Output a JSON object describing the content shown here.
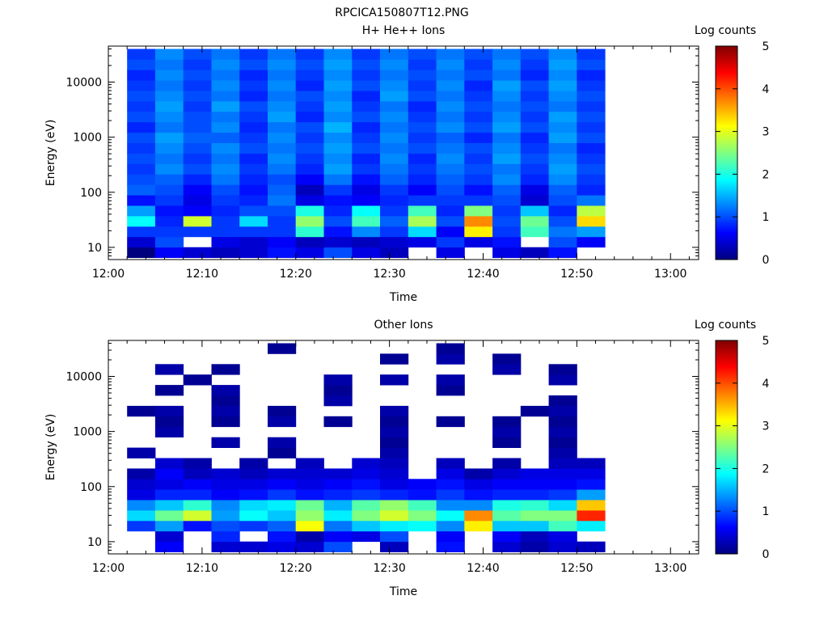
{
  "figure": {
    "title": "RPCICA150807T12.PNG"
  },
  "colors": {
    "colormap": [
      "#00007f",
      "#0000ff",
      "#0080ff",
      "#00ffff",
      "#80ff80",
      "#ffff00",
      "#ff8000",
      "#ff0000",
      "#7f0000"
    ],
    "empty": "#ffffff"
  },
  "chart_data": [
    {
      "type": "heatmap",
      "title": "H+ He++ Ions",
      "xlabel": "Time",
      "ylabel": "Energy (eV)",
      "x_ticks": [
        "12:00",
        "12:10",
        "12:20",
        "12:30",
        "12:40",
        "12:50",
        "13:00"
      ],
      "x_range": [
        "12:00",
        "13:03"
      ],
      "y_scale": "log",
      "y_ticks": [
        "10",
        "100",
        "1000",
        "10000"
      ],
      "y_range": [
        6,
        45000
      ],
      "colorbar": {
        "label": "Log counts",
        "range": [
          0,
          5
        ],
        "ticks": [
          "0",
          "1",
          "2",
          "3",
          "4",
          "5"
        ]
      },
      "time_bins": [
        {
          "start": "12:02",
          "end": "12:05",
          "levels": [
            0.0,
            0.4,
            0.9,
            1.9,
            1.4,
            0.7,
            1.1,
            1.0,
            0.9,
            1.0,
            0.9,
            1.0,
            0.8,
            1.0,
            0.9,
            1.0,
            0.9,
            0.8,
            1.0,
            0.9
          ]
        },
        {
          "start": "12:05",
          "end": "12:08",
          "levels": [
            0.6,
            1.0,
            0.9,
            0.8,
            0.7,
            0.9,
            1.0,
            1.1,
            1.3,
            1.2,
            1.3,
            1.4,
            1.2,
            1.3,
            1.4,
            1.3,
            1.2,
            1.3,
            1.2,
            1.3
          ]
        },
        {
          "start": "12:08",
          "end": "12:11",
          "levels": [
            0.4,
            -1,
            0.9,
            2.9,
            0.6,
            0.5,
            0.6,
            0.8,
            1.0,
            0.9,
            1.0,
            1.1,
            1.0,
            1.0,
            0.9,
            1.0,
            0.9,
            1.0,
            0.9,
            1.0
          ]
        },
        {
          "start": "12:11",
          "end": "12:14",
          "levels": [
            0.3,
            0.5,
            0.9,
            0.9,
            0.8,
            0.9,
            1.0,
            1.2,
            1.3,
            1.2,
            1.3,
            1.1,
            1.3,
            1.2,
            1.4,
            1.2,
            1.3,
            1.2,
            1.3,
            1.2
          ]
        },
        {
          "start": "12:14",
          "end": "12:17",
          "levels": [
            0.4,
            0.4,
            0.9,
            1.7,
            1.0,
            0.8,
            0.7,
            0.8,
            0.9,
            0.8,
            1.0,
            0.9,
            0.8,
            0.9,
            1.0,
            0.8,
            0.9,
            0.8,
            1.0,
            0.9
          ]
        },
        {
          "start": "12:17",
          "end": "12:20",
          "levels": [
            0.7,
            0.6,
            0.9,
            0.9,
            1.0,
            1.2,
            1.1,
            1.0,
            1.2,
            1.3,
            1.2,
            1.3,
            1.2,
            1.4,
            1.3,
            1.2,
            1.3,
            1.2,
            1.3,
            1.2
          ]
        },
        {
          "start": "12:20",
          "end": "12:23",
          "levels": [
            0.5,
            0.3,
            2.1,
            2.6,
            2.0,
            0.5,
            0.3,
            0.6,
            0.8,
            0.9,
            1.0,
            0.9,
            1.0,
            0.8,
            0.9,
            1.0,
            0.8,
            0.9,
            1.0,
            0.9
          ]
        },
        {
          "start": "12:23",
          "end": "12:26",
          "levels": [
            1.0,
            0.4,
            0.7,
            1.0,
            0.8,
            0.7,
            0.9,
            1.2,
            1.4,
            1.3,
            1.4,
            1.3,
            1.5,
            1.3,
            1.4,
            1.3,
            1.4,
            1.3,
            1.4,
            1.3
          ]
        },
        {
          "start": "12:26",
          "end": "12:29",
          "levels": [
            0.5,
            0.3,
            1.3,
            2.2,
            1.9,
            0.6,
            0.5,
            0.7,
            0.9,
            0.8,
            1.0,
            0.9,
            0.8,
            1.0,
            0.9,
            0.8,
            1.0,
            0.9,
            1.0,
            0.9
          ]
        },
        {
          "start": "12:29",
          "end": "12:32",
          "levels": [
            0.3,
            0.4,
            0.9,
            1.1,
            0.9,
            0.8,
            0.9,
            1.1,
            1.2,
            1.3,
            1.2,
            1.3,
            1.2,
            1.3,
            1.2,
            1.4,
            1.3,
            1.2,
            1.3,
            1.2
          ]
        },
        {
          "start": "12:32",
          "end": "12:35",
          "levels": [
            -1,
            0.5,
            1.7,
            2.7,
            2.2,
            0.9,
            0.6,
            0.8,
            0.9,
            0.8,
            1.0,
            0.9,
            1.0,
            0.9,
            0.8,
            1.0,
            0.9,
            1.0,
            0.9,
            1.0
          ]
        },
        {
          "start": "12:35",
          "end": "12:38",
          "levels": [
            0.5,
            0.9,
            0.6,
            1.0,
            0.8,
            0.9,
            1.0,
            1.1,
            1.2,
            1.3,
            1.2,
            1.1,
            1.3,
            1.2,
            1.3,
            1.2,
            1.3,
            1.2,
            1.3,
            1.2
          ]
        },
        {
          "start": "12:38",
          "end": "12:41",
          "levels": [
            -1,
            0.5,
            3.2,
            3.7,
            2.5,
            0.9,
            0.7,
            0.9,
            1.0,
            0.9,
            1.0,
            0.8,
            1.0,
            0.9,
            1.0,
            0.9,
            0.8,
            1.0,
            0.9,
            1.0
          ]
        },
        {
          "start": "12:41",
          "end": "12:44",
          "levels": [
            0.5,
            0.7,
            0.9,
            1.0,
            0.9,
            1.0,
            1.1,
            1.3,
            1.2,
            1.4,
            1.3,
            1.2,
            1.4,
            1.3,
            1.2,
            1.3,
            1.4,
            1.2,
            1.3,
            1.2
          ]
        },
        {
          "start": "12:44",
          "end": "12:47",
          "levels": [
            0.3,
            -1,
            2.2,
            2.4,
            1.6,
            0.4,
            0.5,
            0.8,
            0.9,
            1.0,
            0.9,
            0.8,
            1.0,
            0.9,
            1.0,
            0.9,
            1.0,
            0.8,
            0.9,
            1.0
          ]
        },
        {
          "start": "12:47",
          "end": "12:50",
          "levels": [
            0.7,
            1.0,
            1.2,
            1.0,
            0.8,
            1.0,
            1.1,
            1.3,
            1.4,
            1.3,
            1.2,
            1.4,
            1.3,
            1.4,
            1.2,
            1.3,
            1.4,
            1.3,
            1.4,
            1.3
          ]
        },
        {
          "start": "12:50",
          "end": "12:53",
          "levels": [
            -1,
            0.6,
            1.4,
            3.3,
            2.8,
            1.2,
            0.8,
            0.9,
            1.0,
            0.9,
            0.8,
            1.0,
            0.9,
            1.0,
            0.9,
            1.0,
            0.9,
            0.8,
            1.0,
            0.9
          ]
        }
      ]
    },
    {
      "type": "heatmap",
      "title": "Other Ions",
      "xlabel": "Time",
      "ylabel": "Energy (eV)",
      "x_ticks": [
        "12:00",
        "12:10",
        "12:20",
        "12:30",
        "12:40",
        "12:50",
        "13:00"
      ],
      "x_range": [
        "12:00",
        "13:03"
      ],
      "y_scale": "log",
      "y_ticks": [
        "10",
        "100",
        "1000",
        "10000"
      ],
      "y_range": [
        6,
        45000
      ],
      "colorbar": {
        "label": "Log counts",
        "range": [
          0,
          5
        ],
        "ticks": [
          "0",
          "1",
          "2",
          "3",
          "4",
          "5"
        ]
      },
      "time_bins": [
        {
          "start": "12:02",
          "end": "12:05",
          "levels": [
            -1,
            -1,
            0.9,
            1.7,
            1.3,
            0.5,
            0.4,
            0.2,
            -1,
            0.2,
            -1,
            -1,
            -1,
            0.1,
            -1,
            -1,
            -1,
            -1,
            -1,
            -1
          ]
        },
        {
          "start": "12:05",
          "end": "12:08",
          "levels": [
            0.6,
            0.4,
            1.4,
            2.4,
            1.6,
            0.8,
            0.5,
            0.6,
            0.4,
            -1,
            -1,
            0.2,
            0.1,
            0.2,
            -1,
            0.1,
            -1,
            0.2,
            -1,
            -1
          ]
        },
        {
          "start": "12:08",
          "end": "12:11",
          "levels": [
            -1,
            -1,
            0.7,
            2.9,
            2.1,
            0.8,
            0.6,
            0.3,
            0.2,
            -1,
            -1,
            -1,
            -1,
            -1,
            -1,
            -1,
            0.1,
            -1,
            -1,
            -1
          ]
        },
        {
          "start": "12:11",
          "end": "12:14",
          "levels": [
            0.4,
            0.8,
            1.0,
            1.4,
            1.3,
            0.6,
            0.5,
            0.4,
            -1,
            -1,
            0.2,
            -1,
            0.1,
            0.2,
            0.1,
            0.2,
            -1,
            0.1,
            -1,
            -1
          ]
        },
        {
          "start": "12:14",
          "end": "12:17",
          "levels": [
            0.4,
            -1,
            0.9,
            1.9,
            1.7,
            0.7,
            0.5,
            0.3,
            0.2,
            -1,
            -1,
            -1,
            -1,
            -1,
            -1,
            -1,
            -1,
            -1,
            -1,
            -1
          ]
        },
        {
          "start": "12:17",
          "end": "12:20",
          "levels": [
            0.5,
            0.7,
            1.1,
            1.6,
            1.8,
            0.9,
            0.6,
            0.4,
            -1,
            0.1,
            0.2,
            -1,
            0.2,
            0.1,
            -1,
            -1,
            -1,
            -1,
            -1,
            0.1
          ]
        },
        {
          "start": "12:20",
          "end": "12:23",
          "levels": [
            0.4,
            0.2,
            3.1,
            2.6,
            2.4,
            0.7,
            0.5,
            0.4,
            0.3,
            -1,
            -1,
            -1,
            -1,
            -1,
            -1,
            -1,
            -1,
            -1,
            -1,
            -1
          ]
        },
        {
          "start": "12:23",
          "end": "12:26",
          "levels": [
            1.0,
            0.6,
            1.2,
            1.8,
            1.5,
            0.8,
            0.6,
            0.4,
            -1,
            -1,
            -1,
            -1,
            0.1,
            -1,
            0.2,
            0.1,
            0.2,
            -1,
            -1,
            -1
          ]
        },
        {
          "start": "12:26",
          "end": "12:29",
          "levels": [
            -1,
            0.5,
            1.6,
            2.5,
            2.3,
            0.9,
            0.7,
            0.5,
            0.4,
            -1,
            -1,
            -1,
            -1,
            -1,
            -1,
            -1,
            -1,
            -1,
            -1,
            -1
          ]
        },
        {
          "start": "12:29",
          "end": "12:32",
          "levels": [
            0.3,
            1.0,
            1.8,
            2.9,
            2.6,
            0.8,
            0.5,
            0.4,
            0.3,
            0.2,
            0.1,
            0.2,
            0.1,
            0.2,
            -1,
            -1,
            0.2,
            -1,
            0.1,
            -1
          ]
        },
        {
          "start": "12:32",
          "end": "12:35",
          "levels": [
            -1,
            -1,
            1.9,
            2.5,
            2.2,
            0.7,
            0.6,
            -1,
            -1,
            -1,
            -1,
            -1,
            -1,
            -1,
            -1,
            -1,
            -1,
            -1,
            -1,
            -1
          ]
        },
        {
          "start": "12:35",
          "end": "12:38",
          "levels": [
            0.7,
            0.6,
            1.3,
            1.9,
            1.3,
            0.9,
            0.7,
            0.5,
            0.3,
            -1,
            -1,
            -1,
            0.1,
            -1,
            -1,
            0.1,
            0.2,
            -1,
            0.2,
            0.1
          ]
        },
        {
          "start": "12:38",
          "end": "12:41",
          "levels": [
            -1,
            -1,
            3.2,
            3.7,
            1.3,
            0.7,
            0.5,
            0.2,
            -1,
            -1,
            -1,
            -1,
            -1,
            -1,
            -1,
            -1,
            -1,
            -1,
            -1,
            -1
          ]
        },
        {
          "start": "12:41",
          "end": "12:44",
          "levels": [
            0.4,
            0.6,
            1.6,
            2.3,
            2.0,
            0.8,
            0.6,
            0.4,
            0.2,
            -1,
            0.1,
            0.2,
            0.1,
            -1,
            -1,
            -1,
            -1,
            0.2,
            0.1,
            -1
          ]
        },
        {
          "start": "12:44",
          "end": "12:47",
          "levels": [
            0.2,
            0.3,
            1.6,
            2.5,
            2.1,
            0.8,
            0.6,
            0.5,
            -1,
            -1,
            -1,
            -1,
            -1,
            0.1,
            -1,
            -1,
            -1,
            -1,
            -1,
            -1
          ]
        },
        {
          "start": "12:47",
          "end": "12:50",
          "levels": [
            0.4,
            0.5,
            2.2,
            2.5,
            1.7,
            0.9,
            0.6,
            0.5,
            0.3,
            0.2,
            0.1,
            0.2,
            0.1,
            0.2,
            0.1,
            -1,
            0.2,
            0.1,
            -1,
            -1
          ]
        },
        {
          "start": "12:50",
          "end": "12:53",
          "levels": [
            0.3,
            -1,
            1.8,
            4.2,
            3.4,
            1.4,
            0.7,
            0.5,
            0.3,
            -1,
            -1,
            -1,
            -1,
            -1,
            -1,
            -1,
            -1,
            -1,
            -1,
            -1
          ]
        }
      ]
    }
  ]
}
